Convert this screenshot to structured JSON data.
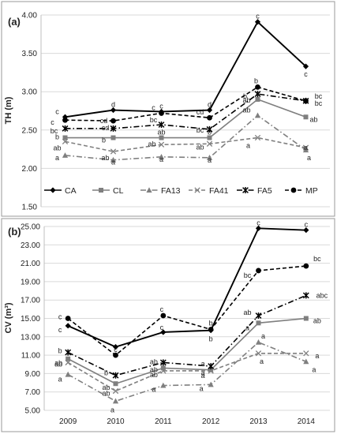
{
  "chart_data": [
    {
      "type": "line",
      "panel_label": "(a)",
      "ylabel": "TH (m)",
      "ylim": [
        1.5,
        4.0
      ],
      "yticks": [
        "1.50",
        "2.00",
        "2.50",
        "3.00",
        "3.50",
        "4.00"
      ],
      "categories": [
        "2009",
        "2010",
        "2011",
        "2012",
        "2013",
        "2014"
      ],
      "grid": true,
      "legend_position": "bottom-inside",
      "series": [
        {
          "name": "CA",
          "color": "#000000",
          "dash": "solid",
          "marker": "diamond",
          "values": [
            2.67,
            2.76,
            2.74,
            2.76,
            3.91,
            3.33
          ],
          "labels": [
            "c",
            "d",
            "c",
            "d",
            "c",
            "c"
          ]
        },
        {
          "name": "CL",
          "color": "#7f7f7f",
          "dash": "solid",
          "marker": "square",
          "values": [
            2.4,
            2.4,
            2.4,
            2.4,
            2.9,
            2.67
          ],
          "labels": [
            "b",
            "b",
            "ab",
            "b",
            "ab",
            "ab"
          ]
        },
        {
          "name": "FA13",
          "color": "#7f7f7f",
          "dash": "dashdot",
          "marker": "triangle",
          "values": [
            2.17,
            2.11,
            2.15,
            2.14,
            2.69,
            2.24
          ],
          "labels": [
            "a",
            "a",
            "a",
            "a",
            "ab",
            "a"
          ]
        },
        {
          "name": "FA41",
          "color": "#7f7f7f",
          "dash": "dashed",
          "marker": "x",
          "values": [
            2.35,
            2.22,
            2.31,
            2.32,
            2.4,
            2.27
          ],
          "labels": [
            "ab",
            "ab",
            "ab",
            "ab",
            "a",
            "a"
          ]
        },
        {
          "name": "FA5",
          "color": "#000000",
          "dash": "dashdot",
          "marker": "star",
          "values": [
            2.52,
            2.52,
            2.57,
            2.51,
            2.97,
            2.88
          ],
          "labels": [
            "bc",
            "cd",
            "bc",
            "bc",
            "b",
            "bc"
          ]
        },
        {
          "name": "MP",
          "color": "#000000",
          "dash": "dashed",
          "marker": "circle",
          "values": [
            2.63,
            2.62,
            2.72,
            2.66,
            3.06,
            2.88
          ],
          "labels": [
            "c",
            "cd",
            "c",
            "cd",
            "b",
            "bc"
          ]
        }
      ]
    },
    {
      "type": "line",
      "panel_label": "(b)",
      "ylabel": "CV (m³)",
      "ylim": [
        5.0,
        25.0
      ],
      "yticks": [
        "5.00",
        "7.00",
        "9.00",
        "11.00",
        "13.00",
        "15.00",
        "17.00",
        "19.00",
        "21.00",
        "23.00",
        "25.00"
      ],
      "categories": [
        "2009",
        "2010",
        "2011",
        "2012",
        "2013",
        "2014"
      ],
      "xlabels": [
        "2009",
        "2010",
        "2011",
        "2012",
        "2013",
        "2014"
      ],
      "grid": true,
      "series": [
        {
          "name": "CA",
          "color": "#000000",
          "dash": "solid",
          "marker": "diamond",
          "values": [
            14.2,
            11.9,
            13.5,
            13.7,
            24.8,
            24.6
          ],
          "labels": [
            "c",
            "c",
            "c",
            "b",
            "c",
            "c"
          ]
        },
        {
          "name": "CL",
          "color": "#7f7f7f",
          "dash": "solid",
          "marker": "square",
          "values": [
            10.6,
            7.9,
            9.6,
            9.4,
            14.5,
            15.0
          ],
          "labels": [
            "ab",
            "ab",
            "ab",
            "a",
            "a",
            "ab"
          ]
        },
        {
          "name": "FA13",
          "color": "#7f7f7f",
          "dash": "dashdot",
          "marker": "triangle",
          "values": [
            8.9,
            6.0,
            7.7,
            7.8,
            12.4,
            10.3
          ],
          "labels": [
            "a",
            "a",
            "a",
            "a",
            "a",
            "a"
          ]
        },
        {
          "name": "FA41",
          "color": "#7f7f7f",
          "dash": "dashed",
          "marker": "x",
          "values": [
            10.2,
            7.1,
            9.3,
            9.3,
            11.2,
            11.2
          ],
          "labels": [
            "ab",
            "ab",
            "ab",
            "a",
            "a",
            "a"
          ]
        },
        {
          "name": "FA5",
          "color": "#000000",
          "dash": "dashdot",
          "marker": "star",
          "values": [
            11.3,
            8.8,
            10.2,
            9.8,
            15.3,
            17.5
          ],
          "labels": [
            "b",
            "b",
            "ab",
            "a",
            "ab",
            "abc"
          ]
        },
        {
          "name": "MP",
          "color": "#000000",
          "dash": "dashed",
          "marker": "circle",
          "values": [
            15.0,
            11.0,
            15.3,
            13.8,
            20.2,
            20.7
          ],
          "labels": [
            "c",
            "c",
            "c",
            "b",
            "bc",
            "bc"
          ]
        }
      ]
    }
  ]
}
